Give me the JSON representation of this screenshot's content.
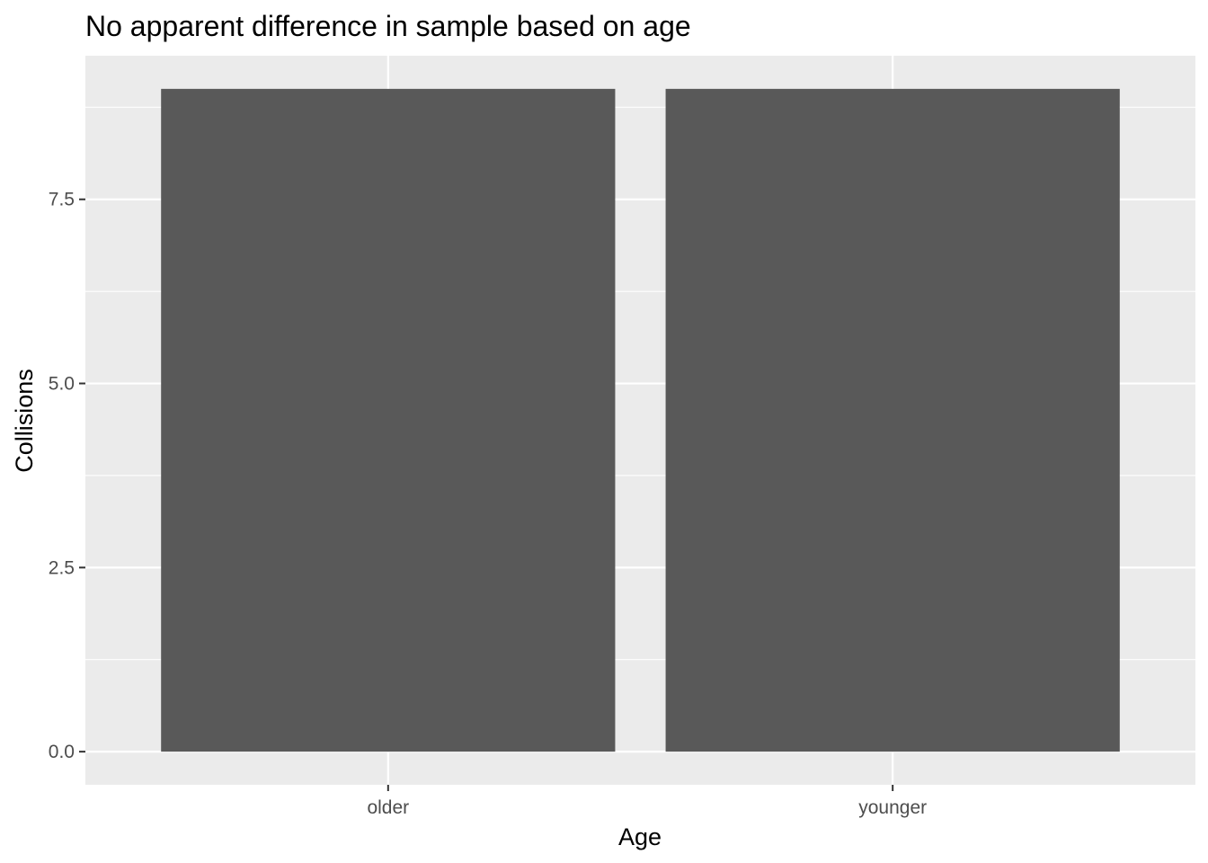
{
  "chart_data": {
    "type": "bar",
    "title": "No apparent difference in sample based on age",
    "xlabel": "Age",
    "ylabel": "Collisions",
    "categories": [
      "older",
      "younger"
    ],
    "values": [
      9,
      9
    ],
    "ylim": [
      -0.45,
      9.45
    ],
    "yticks": [
      0,
      2.5,
      5,
      7.5
    ],
    "ytick_labels": [
      "0.0",
      "2.5",
      "5.0",
      "7.5"
    ],
    "grid": true,
    "legend": "none",
    "colors": {
      "bar": "#595959",
      "panel": "#ebebeb",
      "grid": "#ffffff",
      "tick": "#333333"
    }
  }
}
